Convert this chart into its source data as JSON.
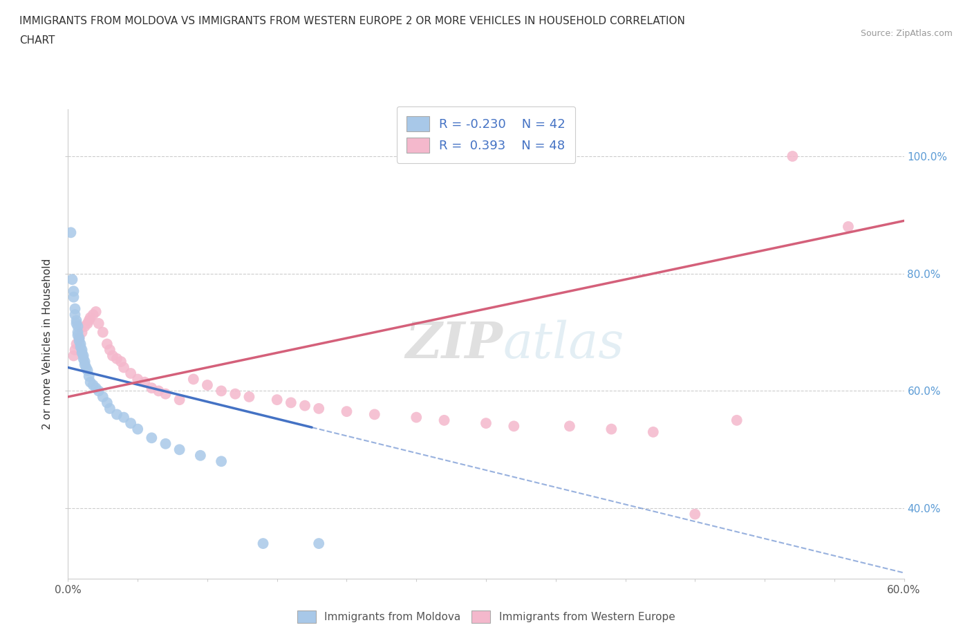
{
  "title_line1": "IMMIGRANTS FROM MOLDOVA VS IMMIGRANTS FROM WESTERN EUROPE 2 OR MORE VEHICLES IN HOUSEHOLD CORRELATION",
  "title_line2": "CHART",
  "source": "Source: ZipAtlas.com",
  "ylabel": "2 or more Vehicles in Household",
  "xlim": [
    0.0,
    0.6
  ],
  "ylim": [
    0.28,
    1.08
  ],
  "moldova_color": "#a8c8e8",
  "western_color": "#f4b8cc",
  "trendline_blue": "#4472C4",
  "trendline_pink": "#d4607a",
  "R_moldova": -0.23,
  "N_moldova": 42,
  "R_western": 0.393,
  "N_western": 48,
  "legend_label_moldova": "Immigrants from Moldova",
  "legend_label_western": "Immigrants from Western Europe",
  "watermark_zip": "ZIP",
  "watermark_atlas": "atlas",
  "moldova_x": [
    0.002,
    0.003,
    0.004,
    0.004,
    0.005,
    0.005,
    0.006,
    0.006,
    0.007,
    0.007,
    0.007,
    0.008,
    0.008,
    0.009,
    0.009,
    0.01,
    0.01,
    0.011,
    0.011,
    0.012,
    0.012,
    0.013,
    0.014,
    0.015,
    0.016,
    0.018,
    0.02,
    0.022,
    0.025,
    0.028,
    0.03,
    0.035,
    0.04,
    0.045,
    0.05,
    0.06,
    0.07,
    0.08,
    0.095,
    0.11,
    0.14,
    0.18
  ],
  "moldova_y": [
    0.87,
    0.79,
    0.77,
    0.76,
    0.74,
    0.73,
    0.72,
    0.715,
    0.71,
    0.7,
    0.695,
    0.69,
    0.685,
    0.68,
    0.675,
    0.67,
    0.665,
    0.66,
    0.655,
    0.65,
    0.645,
    0.64,
    0.635,
    0.625,
    0.615,
    0.61,
    0.605,
    0.6,
    0.59,
    0.58,
    0.57,
    0.56,
    0.555,
    0.545,
    0.535,
    0.52,
    0.51,
    0.5,
    0.49,
    0.48,
    0.34,
    0.34
  ],
  "western_x": [
    0.004,
    0.005,
    0.006,
    0.008,
    0.01,
    0.012,
    0.014,
    0.015,
    0.016,
    0.018,
    0.02,
    0.022,
    0.025,
    0.028,
    0.03,
    0.032,
    0.035,
    0.038,
    0.04,
    0.045,
    0.05,
    0.055,
    0.06,
    0.065,
    0.07,
    0.08,
    0.09,
    0.1,
    0.11,
    0.12,
    0.13,
    0.15,
    0.16,
    0.17,
    0.18,
    0.2,
    0.22,
    0.25,
    0.27,
    0.3,
    0.32,
    0.36,
    0.39,
    0.42,
    0.45,
    0.48,
    0.52,
    0.56
  ],
  "western_y": [
    0.66,
    0.67,
    0.68,
    0.69,
    0.7,
    0.71,
    0.715,
    0.72,
    0.725,
    0.73,
    0.735,
    0.715,
    0.7,
    0.68,
    0.67,
    0.66,
    0.655,
    0.65,
    0.64,
    0.63,
    0.62,
    0.615,
    0.605,
    0.6,
    0.595,
    0.585,
    0.62,
    0.61,
    0.6,
    0.595,
    0.59,
    0.585,
    0.58,
    0.575,
    0.57,
    0.565,
    0.56,
    0.555,
    0.55,
    0.545,
    0.54,
    0.54,
    0.535,
    0.53,
    0.39,
    0.55,
    1.0,
    0.88
  ],
  "trend_blue_x0": 0.0,
  "trend_blue_x1": 0.6,
  "trend_blue_y0": 0.64,
  "trend_blue_y1": 0.29,
  "trend_blue_solid_x1": 0.175,
  "trend_pink_x0": 0.0,
  "trend_pink_x1": 0.6,
  "trend_pink_y0": 0.59,
  "trend_pink_y1": 0.89
}
